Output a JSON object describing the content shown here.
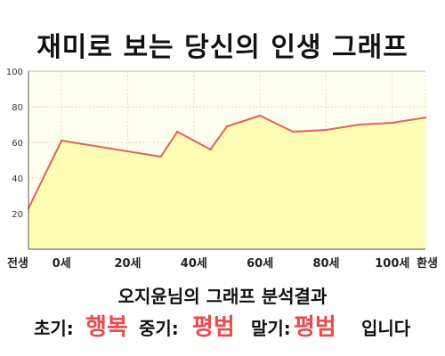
{
  "title": "재미로 보는 당신의 인생 그래프",
  "chart_data": {
    "type": "area",
    "x": [
      -10,
      0,
      30,
      35,
      45,
      50,
      60,
      70,
      80,
      90,
      100,
      110
    ],
    "values": [
      23,
      61,
      52,
      66,
      56,
      69,
      75,
      66,
      67,
      70,
      71,
      74
    ],
    "ylim": [
      0,
      100
    ],
    "y_ticks": [
      20,
      40,
      60,
      80,
      100
    ],
    "x_tick_labels": [
      {
        "x": -10,
        "label": "전생"
      },
      {
        "x": 0,
        "label": "0세"
      },
      {
        "x": 20,
        "label": "20세"
      },
      {
        "x": 40,
        "label": "40세"
      },
      {
        "x": 60,
        "label": "60세"
      },
      {
        "x": 80,
        "label": "80세"
      },
      {
        "x": 100,
        "label": "100세"
      },
      {
        "x": 110,
        "label": "환생"
      }
    ],
    "grid": true,
    "line_color": "#e06060",
    "fill_color": "#fffcb4"
  },
  "result": {
    "subtitle": "오지윤님의 그래프 분석결과",
    "early_label": "초기:",
    "early_value": "행복",
    "middle_label": "중기:",
    "middle_value": "평범",
    "late_label": "말기:",
    "late_value": "평범",
    "ending": "입니다"
  },
  "colors": {
    "highlight": "#e74c4c",
    "plot_background": "#fffff0"
  }
}
